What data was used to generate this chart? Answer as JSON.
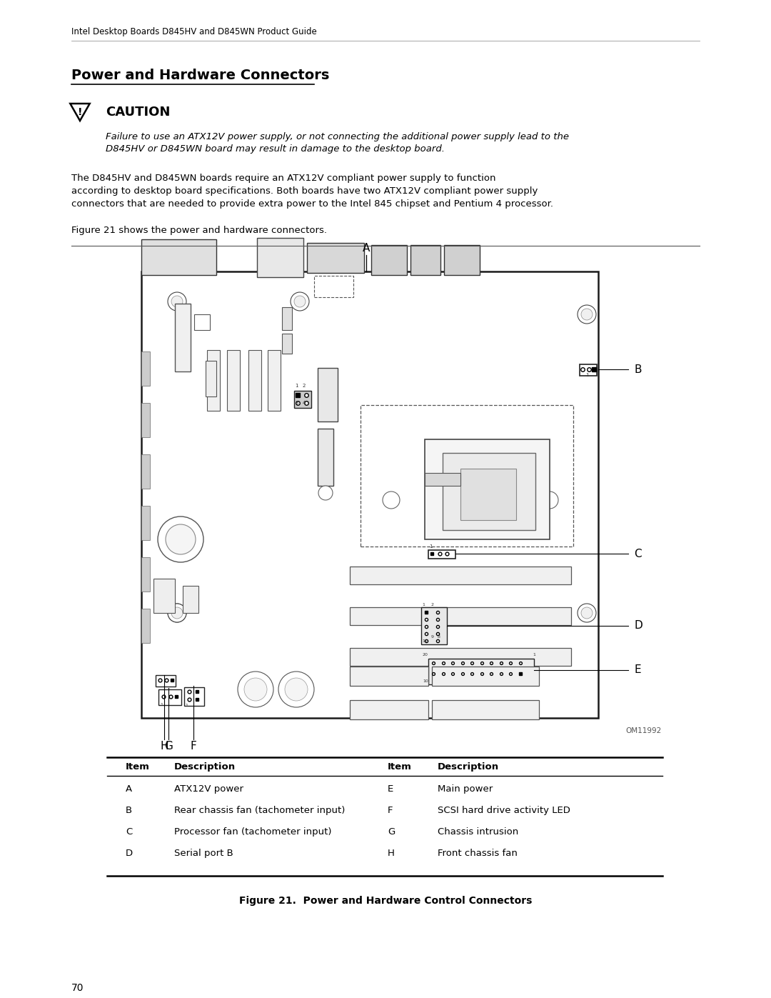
{
  "page_title": "Intel Desktop Boards D845HV and D845WN Product Guide",
  "section_title": "Power and Hardware Connectors",
  "caution_title": "CAUTION",
  "caution_italic_1": "Failure to use an ATX12V power supply, or not connecting the additional power supply lead to the",
  "caution_italic_2": "D845HV or D845WN board may result in damage to the desktop board.",
  "body_1": "The D845HV and D845WN boards require an ATX12V compliant power supply to function",
  "body_2": "according to desktop board specifications. Both boards have two ATX12V compliant power supply",
  "body_3": "connectors that are needed to provide extra power to the Intel 845 chipset and Pentium 4 processor.",
  "figure_intro": "Figure 21 shows the power and hardware connectors.",
  "figure_caption": "Figure 21.  Power and Hardware Control Connectors",
  "image_credit": "OM11992",
  "page_number": "70",
  "table_rows": [
    [
      "A",
      "ATX12V power",
      "E",
      "Main power"
    ],
    [
      "B",
      "Rear chassis fan (tachometer input)",
      "F",
      "SCSI hard drive activity LED"
    ],
    [
      "C",
      "Processor fan (tachometer input)",
      "G",
      "Chassis intrusion"
    ],
    [
      "D",
      "Serial port B",
      "H",
      "Front chassis fan"
    ]
  ],
  "bg_color": "#ffffff",
  "text_color": "#000000"
}
